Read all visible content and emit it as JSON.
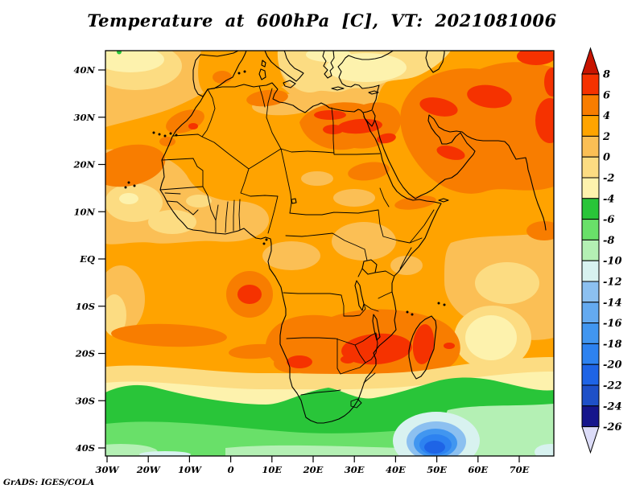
{
  "title": "Temperature at 600hPa [C], VT: 2021081006",
  "attribution": "GrADS: IGES/COLA",
  "axes": {
    "lat_labels": [
      "40N",
      "30N",
      "20N",
      "10N",
      "EQ",
      "10S",
      "20S",
      "30S",
      "40S"
    ],
    "lon_labels": [
      "30W",
      "20W",
      "10W",
      "0",
      "10E",
      "20E",
      "30E",
      "40E",
      "50E",
      "60E",
      "70E"
    ]
  },
  "colorbar": {
    "labels": [
      "8",
      "6",
      "4",
      "2",
      "0",
      "-2",
      "-4",
      "-6",
      "-8",
      "-10",
      "-12",
      "-14",
      "-16",
      "-18",
      "-20",
      "-22",
      "-24",
      "-26"
    ],
    "above_color": "#c81400",
    "segment_colors": [
      "#f53200",
      "#f87d00",
      "#ffa400",
      "#fbbf55",
      "#fcdc82",
      "#fdf2ad",
      "#29c539",
      "#69e069",
      "#b4f0b4",
      "#d8f2f0",
      "#8cc0f0",
      "#64aaf0",
      "#4196f0",
      "#2d82f0",
      "#1e64e6",
      "#1e50c8",
      "#16168c"
    ],
    "below_color": "#dcdcf8"
  },
  "chart_data": {
    "type": "heatmap",
    "title": "Temperature at 600hPa [C], VT: 2021081006",
    "variable": "Temperature at 600 hPa",
    "units": "C",
    "valid_time": "2021081006",
    "x_axis": {
      "ticks": [
        "30W",
        "20W",
        "10W",
        "0",
        "10E",
        "20E",
        "30E",
        "40E",
        "50E",
        "60E",
        "70E"
      ],
      "range_deg_lon": [
        -30,
        78
      ]
    },
    "y_axis": {
      "ticks": [
        "40N",
        "30N",
        "20N",
        "10N",
        "EQ",
        "10S",
        "20S",
        "30S",
        "40S"
      ],
      "range_deg_lat": [
        -42,
        44
      ]
    },
    "contour_levels": [
      -26,
      -24,
      -22,
      -20,
      -18,
      -16,
      -14,
      -12,
      -10,
      -8,
      -6,
      -4,
      -2,
      0,
      2,
      4,
      6,
      8
    ],
    "legend_position": "right",
    "grid": false,
    "features": [
      {
        "region": "North Africa / Sahara (15N-35N)",
        "approx_value_C": "2 to 4"
      },
      {
        "region": "Libya-Egypt-Levant warm pool (~25-32N)",
        "approx_value_C": "4 to 7"
      },
      {
        "region": "Middle East / Iran / Afghanistan",
        "approx_value_C": "4 to 8"
      },
      {
        "region": "Mediterranean, Aegean and Turkey (36-44N)",
        "approx_value_C": "-4 to 2"
      },
      {
        "region": "NE Atlantic corner (40-44N)",
        "approx_value_C": "-4 to 0"
      },
      {
        "region": "West Atlantic and Sahel (5N-20N)",
        "approx_value_C": "0 to 2"
      },
      {
        "region": "Equatorial Africa / Congo basin",
        "approx_value_C": "0 to 3"
      },
      {
        "region": "Gabon-Angola coastal hot spot (~8E, 7S)",
        "approx_value_C": "6 to 8"
      },
      {
        "region": "Southern Africa warm band (10S-25S)",
        "approx_value_C": "4 to 6"
      },
      {
        "region": "Zimbabwe-Mozambique-Madagascar hot cores",
        "approx_value_C": "6 to 8"
      },
      {
        "region": "Subtropical transition band (25S-31S)",
        "approx_value_C": "-4 to 0"
      },
      {
        "region": "Southern Ocean band (31S-40S)",
        "approx_value_C": "-4 to -10"
      },
      {
        "region": "SW Indian Ocean cold low (~52E, 37S)",
        "approx_value_C": "-12 to -22"
      }
    ]
  }
}
